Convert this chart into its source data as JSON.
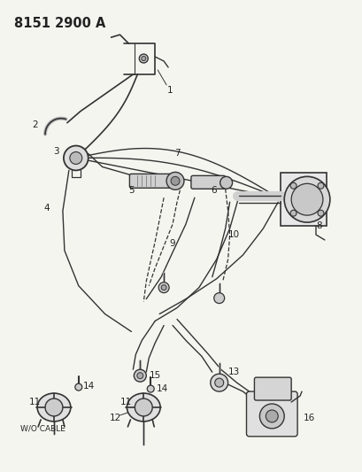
{
  "title": "8151 2900 A",
  "bg_color": "#f5f5f0",
  "line_color": "#333333",
  "label_color": "#222222",
  "title_fontsize": 10.5,
  "label_fontsize": 7.5,
  "figsize": [
    4.1,
    5.33
  ],
  "dpi": 100
}
